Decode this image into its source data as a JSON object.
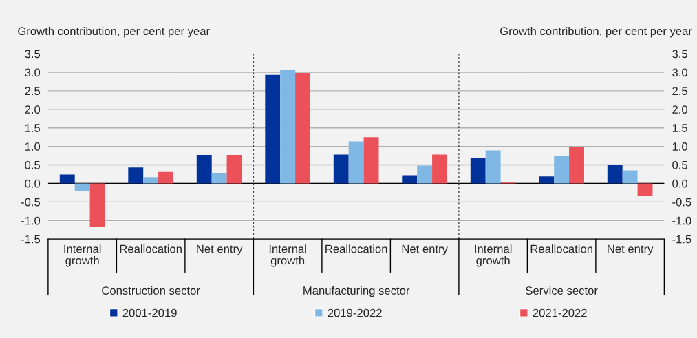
{
  "chart_data": {
    "type": "bar",
    "ylabel": "Growth contribution, per cent per year",
    "y2label": "Growth contribution, per cent per year",
    "categories": [
      "Internal growth",
      "Reallocation",
      "Net entry",
      "Internal growth",
      "Reallocation",
      "Net entry",
      "Internal growth",
      "Reallocation",
      "Net entry"
    ],
    "series": [
      {
        "name": "2001-2019",
        "color": "#003299",
        "values": [
          0.24,
          0.43,
          0.77,
          2.93,
          0.78,
          0.22,
          0.69,
          0.19,
          0.5
        ]
      },
      {
        "name": "2019-2022",
        "color": "#7fb8e5",
        "values": [
          -0.2,
          0.17,
          0.27,
          3.07,
          1.13,
          0.48,
          0.89,
          0.75,
          0.35
        ]
      },
      {
        "name": "2021-2022",
        "color": "#ec5059",
        "values": [
          -1.18,
          0.31,
          0.77,
          2.98,
          1.25,
          0.78,
          0.02,
          0.98,
          -0.34
        ]
      }
    ],
    "annotations": [
      "Construction sector",
      "Manufacturing sector",
      "Service sector"
    ],
    "ylim": [
      -1.5,
      3.5
    ],
    "yticks": [
      {
        "value": -1.5,
        "label": "-1.5"
      },
      {
        "value": -1.0,
        "label": "-1.0"
      },
      {
        "value": -0.5,
        "label": "-0.5"
      },
      {
        "value": 0.0,
        "label": "0.0"
      },
      {
        "value": 0.5,
        "label": "0.5"
      },
      {
        "value": 1.0,
        "label": "1.0"
      },
      {
        "value": 1.5,
        "label": "1.5"
      },
      {
        "value": 2.0,
        "label": "2.0"
      },
      {
        "value": 2.5,
        "label": "2.5"
      },
      {
        "value": 3.0,
        "label": "3.0"
      },
      {
        "value": 3.5,
        "label": "3.5"
      }
    ],
    "y2lim": [
      -1.5,
      3.5
    ],
    "y2ticks": [
      {
        "value": -1.5,
        "label": "-1.5"
      },
      {
        "value": -1.0,
        "label": "-1.0"
      },
      {
        "value": -0.5,
        "label": "-0.5"
      },
      {
        "value": 0.0,
        "label": "0.0"
      },
      {
        "value": 0.5,
        "label": "0.5"
      },
      {
        "value": 1.0,
        "label": "1.0"
      },
      {
        "value": 1.5,
        "label": "1.5"
      },
      {
        "value": 2.0,
        "label": "2.0"
      },
      {
        "value": 2.5,
        "label": "2.5"
      },
      {
        "value": 3.0,
        "label": "3.0"
      },
      {
        "value": 3.5,
        "label": "3.5"
      }
    ],
    "grid": "y",
    "legend": "bottom"
  }
}
